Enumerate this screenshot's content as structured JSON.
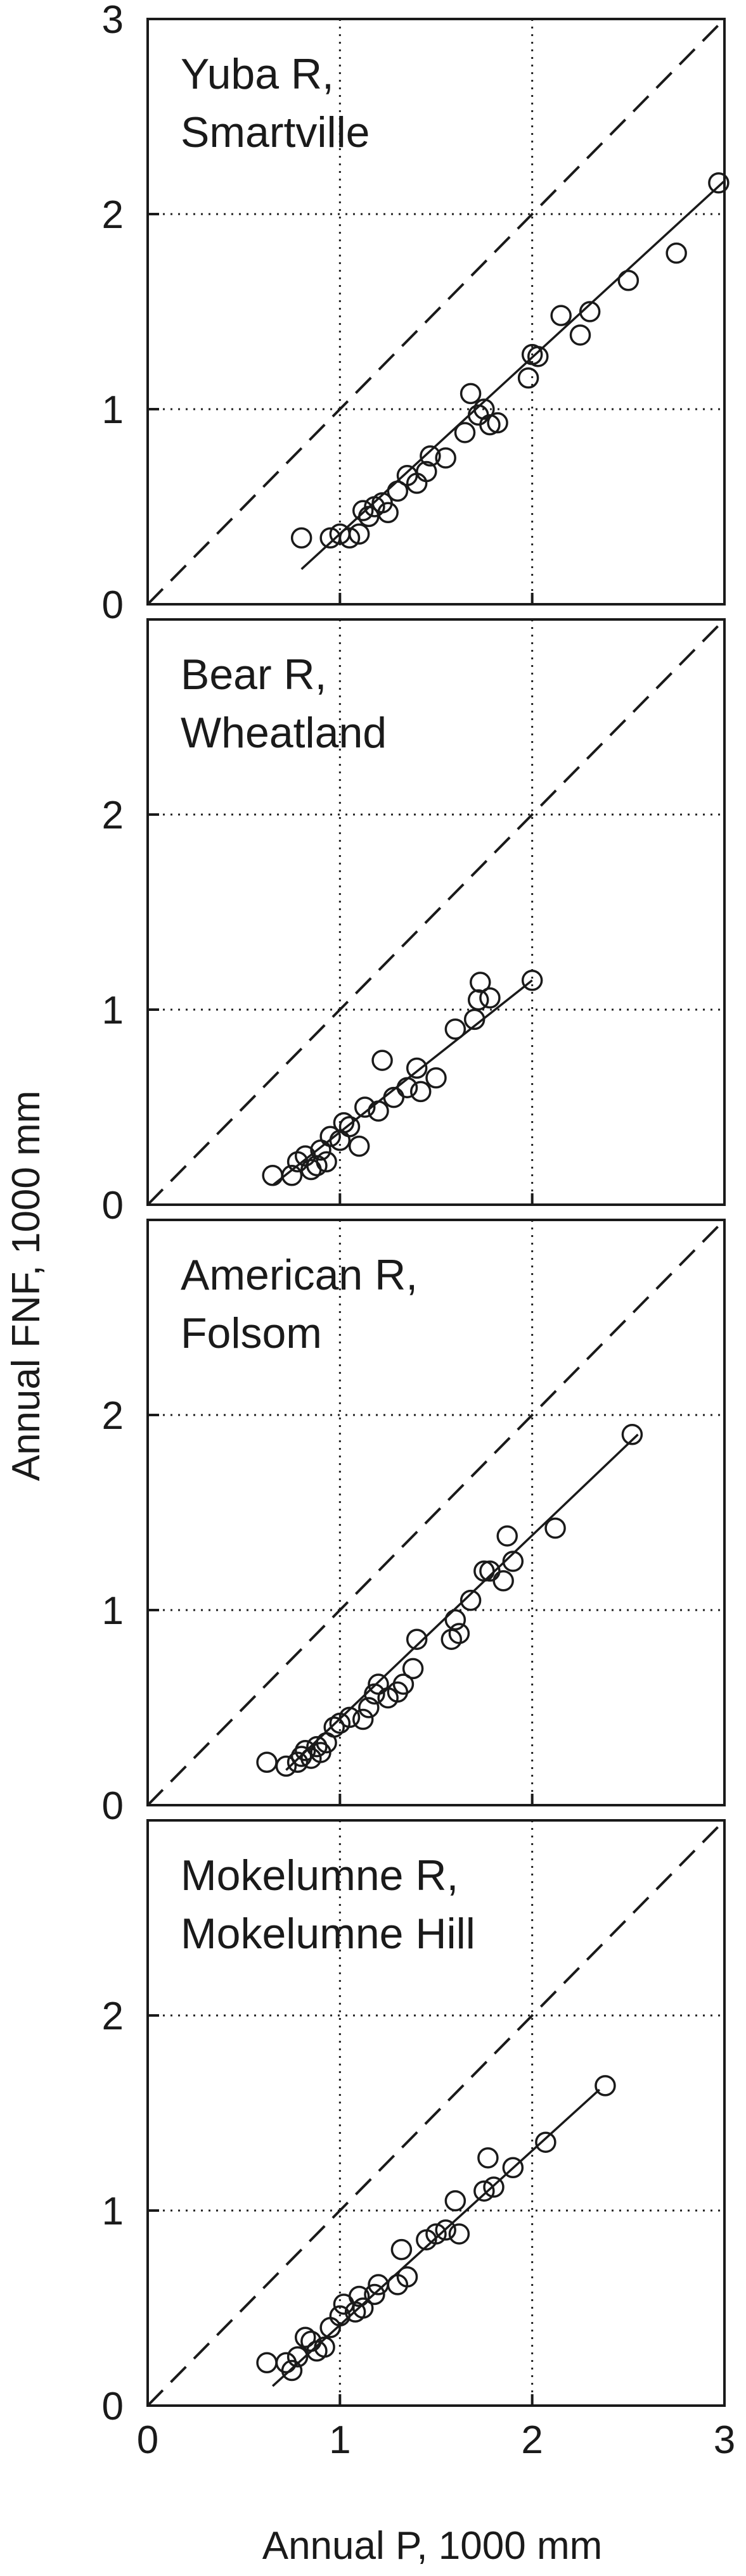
{
  "figure": {
    "xlabel": "Annual P, 1000 mm",
    "ylabel": "Annual FNF, 1000 mm"
  },
  "chart_data": [
    {
      "type": "scatter",
      "title_lines": [
        "Yuba R,",
        "Smartville"
      ],
      "xlim": [
        0,
        3
      ],
      "ylim": [
        0,
        3
      ],
      "xticks": [
        "0",
        "1",
        "2",
        "3"
      ],
      "yticks": [
        "0",
        "1",
        "2",
        "3"
      ],
      "grid": "dotted at 1 and 2",
      "reference_line": "1:1 dashed",
      "fit_line": {
        "x": [
          0.8,
          3.0
        ],
        "y": [
          0.18,
          2.17
        ]
      },
      "points": [
        [
          0.8,
          0.34
        ],
        [
          0.95,
          0.34
        ],
        [
          1.0,
          0.36
        ],
        [
          1.05,
          0.34
        ],
        [
          1.1,
          0.36
        ],
        [
          1.12,
          0.48
        ],
        [
          1.15,
          0.45
        ],
        [
          1.18,
          0.5
        ],
        [
          1.22,
          0.52
        ],
        [
          1.25,
          0.47
        ],
        [
          1.3,
          0.58
        ],
        [
          1.35,
          0.66
        ],
        [
          1.4,
          0.62
        ],
        [
          1.45,
          0.68
        ],
        [
          1.47,
          0.76
        ],
        [
          1.55,
          0.75
        ],
        [
          1.65,
          0.88
        ],
        [
          1.68,
          1.08
        ],
        [
          1.72,
          0.97
        ],
        [
          1.75,
          1.0
        ],
        [
          1.78,
          0.92
        ],
        [
          1.82,
          0.93
        ],
        [
          1.98,
          1.16
        ],
        [
          2.0,
          1.28
        ],
        [
          2.03,
          1.27
        ],
        [
          2.15,
          1.48
        ],
        [
          2.25,
          1.38
        ],
        [
          2.3,
          1.5
        ],
        [
          2.5,
          1.66
        ],
        [
          2.75,
          1.8
        ],
        [
          2.97,
          2.16
        ]
      ]
    },
    {
      "type": "scatter",
      "title_lines": [
        "Bear R,",
        "Wheatland"
      ],
      "xlim": [
        0,
        3
      ],
      "ylim": [
        0,
        3
      ],
      "xticks": [
        "0",
        "1",
        "2",
        "3"
      ],
      "yticks": [
        "0",
        "1",
        "2",
        ""
      ],
      "grid": "dotted at 1 and 2",
      "reference_line": "1:1 dashed",
      "fit_line": {
        "x": [
          0.65,
          2.0
        ],
        "y": [
          0.1,
          1.15
        ]
      },
      "points": [
        [
          0.65,
          0.15
        ],
        [
          0.75,
          0.15
        ],
        [
          0.78,
          0.22
        ],
        [
          0.82,
          0.25
        ],
        [
          0.85,
          0.18
        ],
        [
          0.88,
          0.2
        ],
        [
          0.9,
          0.28
        ],
        [
          0.93,
          0.22
        ],
        [
          0.95,
          0.35
        ],
        [
          1.0,
          0.33
        ],
        [
          1.02,
          0.42
        ],
        [
          1.05,
          0.4
        ],
        [
          1.1,
          0.3
        ],
        [
          1.13,
          0.5
        ],
        [
          1.2,
          0.48
        ],
        [
          1.22,
          0.74
        ],
        [
          1.28,
          0.55
        ],
        [
          1.35,
          0.6
        ],
        [
          1.4,
          0.7
        ],
        [
          1.42,
          0.58
        ],
        [
          1.5,
          0.65
        ],
        [
          1.6,
          0.9
        ],
        [
          1.7,
          0.95
        ],
        [
          1.72,
          1.05
        ],
        [
          1.73,
          1.14
        ],
        [
          1.78,
          1.06
        ],
        [
          2.0,
          1.15
        ]
      ]
    },
    {
      "type": "scatter",
      "title_lines": [
        "American R,",
        "Folsom"
      ],
      "xlim": [
        0,
        3
      ],
      "ylim": [
        0,
        3
      ],
      "xticks": [
        "0",
        "1",
        "2",
        "3"
      ],
      "yticks": [
        "0",
        "1",
        "2",
        ""
      ],
      "grid": "dotted at 1 and 2",
      "reference_line": "1:1 dashed",
      "fit_line": {
        "x": [
          0.72,
          2.55
        ],
        "y": [
          0.18,
          1.9
        ]
      },
      "points": [
        [
          0.62,
          0.22
        ],
        [
          0.72,
          0.2
        ],
        [
          0.78,
          0.22
        ],
        [
          0.8,
          0.25
        ],
        [
          0.82,
          0.28
        ],
        [
          0.85,
          0.24
        ],
        [
          0.88,
          0.3
        ],
        [
          0.9,
          0.27
        ],
        [
          0.93,
          0.32
        ],
        [
          0.97,
          0.4
        ],
        [
          1.0,
          0.42
        ],
        [
          1.05,
          0.45
        ],
        [
          1.12,
          0.44
        ],
        [
          1.15,
          0.5
        ],
        [
          1.18,
          0.57
        ],
        [
          1.2,
          0.62
        ],
        [
          1.25,
          0.55
        ],
        [
          1.3,
          0.58
        ],
        [
          1.33,
          0.62
        ],
        [
          1.38,
          0.7
        ],
        [
          1.4,
          0.85
        ],
        [
          1.58,
          0.85
        ],
        [
          1.6,
          0.95
        ],
        [
          1.62,
          0.88
        ],
        [
          1.68,
          1.05
        ],
        [
          1.75,
          1.2
        ],
        [
          1.78,
          1.2
        ],
        [
          1.85,
          1.15
        ],
        [
          1.87,
          1.38
        ],
        [
          1.9,
          1.25
        ],
        [
          2.12,
          1.42
        ],
        [
          2.52,
          1.9
        ]
      ]
    },
    {
      "type": "scatter",
      "title_lines": [
        "Mokelumne R,",
        "Mokelumne Hill"
      ],
      "xlim": [
        0,
        3
      ],
      "ylim": [
        0,
        3
      ],
      "xticks": [
        "0",
        "1",
        "2",
        "3"
      ],
      "yticks": [
        "0",
        "1",
        "2",
        ""
      ],
      "grid": "dotted at 1 and 2",
      "reference_line": "1:1 dashed",
      "fit_line": {
        "x": [
          0.65,
          2.35
        ],
        "y": [
          0.1,
          1.62
        ]
      },
      "points": [
        [
          0.62,
          0.22
        ],
        [
          0.72,
          0.22
        ],
        [
          0.75,
          0.18
        ],
        [
          0.78,
          0.25
        ],
        [
          0.82,
          0.35
        ],
        [
          0.85,
          0.33
        ],
        [
          0.88,
          0.28
        ],
        [
          0.92,
          0.3
        ],
        [
          0.95,
          0.4
        ],
        [
          1.0,
          0.46
        ],
        [
          1.02,
          0.52
        ],
        [
          1.08,
          0.48
        ],
        [
          1.1,
          0.56
        ],
        [
          1.12,
          0.5
        ],
        [
          1.18,
          0.57
        ],
        [
          1.2,
          0.62
        ],
        [
          1.3,
          0.62
        ],
        [
          1.32,
          0.8
        ],
        [
          1.35,
          0.66
        ],
        [
          1.45,
          0.85
        ],
        [
          1.5,
          0.88
        ],
        [
          1.55,
          0.9
        ],
        [
          1.6,
          1.05
        ],
        [
          1.62,
          0.88
        ],
        [
          1.75,
          1.1
        ],
        [
          1.77,
          1.27
        ],
        [
          1.8,
          1.12
        ],
        [
          1.9,
          1.22
        ],
        [
          2.07,
          1.35
        ],
        [
          2.38,
          1.64
        ]
      ]
    }
  ]
}
